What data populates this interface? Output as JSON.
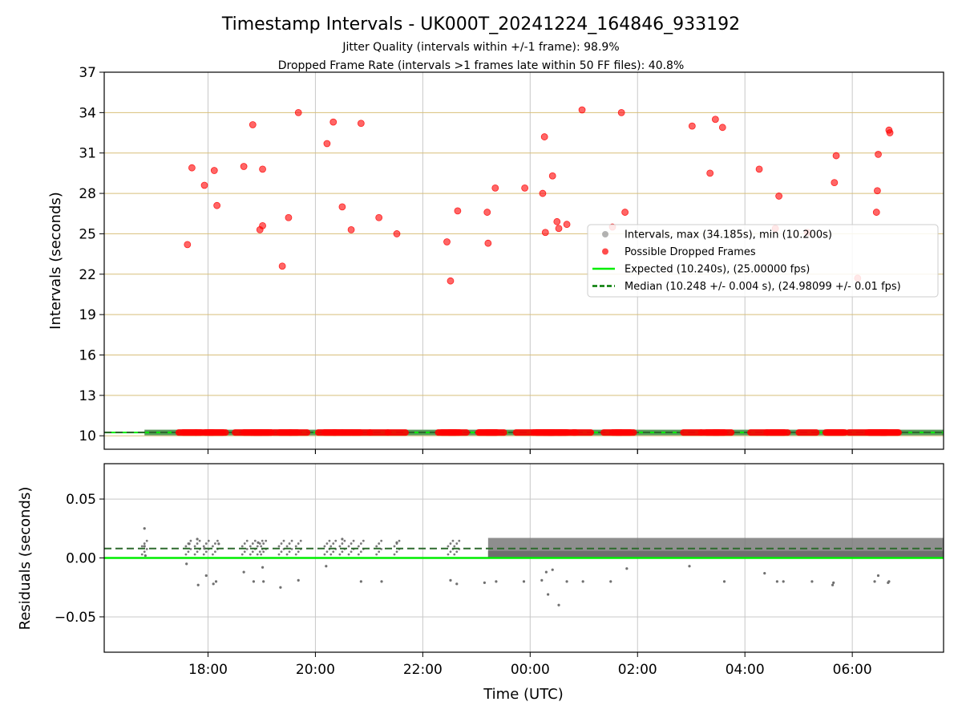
{
  "figure": {
    "title": "Timestamp Intervals - UK000T_20241224_164846_933192",
    "subtitle_1": "Jitter Quality (intervals within +/-1 frame): 98.9%",
    "subtitle_2": "Dropped Frame Rate (intervals >1 frames late within 50 FF files): 40.8%"
  },
  "chart_data": [
    {
      "type": "scatter",
      "panel": "top",
      "xlabel": "",
      "ylabel": "Intervals (seconds)",
      "xlim": [
        "16:04",
        "07:42"
      ],
      "ylim": [
        9,
        37
      ],
      "yticks": [
        10,
        13,
        16,
        19,
        22,
        25,
        28,
        31,
        34,
        37
      ],
      "xticks": [
        "18:00",
        "20:00",
        "22:00",
        "00:00",
        "02:00",
        "04:00",
        "06:00"
      ],
      "grid": "on (gray vertical, tan horizontal)",
      "legend_position": "center-right",
      "colors": {
        "interval": "#808080",
        "dropped": "#ff0000",
        "expected": "#00ee00",
        "median": "#007a00",
        "hgrid": "#d8bf7a",
        "vgrid": "#c8c8c8"
      },
      "expected_interval": 10.24,
      "median_interval": 10.248,
      "legend": [
        {
          "label": "Intervals, max (34.185s), min (10.200s)",
          "kind": "interval"
        },
        {
          "label": "Possible Dropped Frames",
          "kind": "dropped"
        },
        {
          "label": "Expected (10.240s), (25.00000 fps)",
          "kind": "expected"
        },
        {
          "label": "Median (10.248 +/- 0.004 s), (24.98099 +/- 0.01 fps)",
          "kind": "median"
        }
      ],
      "series": [
        {
          "name": "Possible Dropped Frames",
          "points": [
            [
              "17:37",
              24.2
            ],
            [
              "17:42",
              29.9
            ],
            [
              "17:56",
              28.6
            ],
            [
              "18:07",
              29.7
            ],
            [
              "18:10",
              27.1
            ],
            [
              "18:40",
              30.0
            ],
            [
              "18:50",
              33.1
            ],
            [
              "18:58",
              25.3
            ],
            [
              "19:01",
              25.6
            ],
            [
              "19:01",
              29.8
            ],
            [
              "19:23",
              22.6
            ],
            [
              "19:30",
              26.2
            ],
            [
              "19:41",
              34.0
            ],
            [
              "20:13",
              31.7
            ],
            [
              "20:20",
              33.3
            ],
            [
              "20:30",
              27.0
            ],
            [
              "20:40",
              25.3
            ],
            [
              "20:51",
              33.2
            ],
            [
              "21:11",
              26.2
            ],
            [
              "21:31",
              25.0
            ],
            [
              "22:27",
              24.4
            ],
            [
              "22:31",
              21.5
            ],
            [
              "22:39",
              26.7
            ],
            [
              "23:12",
              26.6
            ],
            [
              "23:13",
              24.3
            ],
            [
              "23:21",
              28.4
            ],
            [
              "23:54",
              28.4
            ],
            [
              "00:14",
              28.0
            ],
            [
              "00:16",
              32.2
            ],
            [
              "00:17",
              25.1
            ],
            [
              "00:25",
              29.3
            ],
            [
              "00:30",
              25.9
            ],
            [
              "00:32",
              25.4
            ],
            [
              "00:41",
              25.7
            ],
            [
              "00:58",
              34.2
            ],
            [
              "01:32",
              25.5
            ],
            [
              "01:42",
              34.0
            ],
            [
              "01:46",
              26.6
            ],
            [
              "03:01",
              33.0
            ],
            [
              "03:21",
              29.5
            ],
            [
              "03:27",
              33.5
            ],
            [
              "03:35",
              32.9
            ],
            [
              "04:16",
              29.8
            ],
            [
              "04:34",
              25.4
            ],
            [
              "04:38",
              27.8
            ],
            [
              "05:10",
              25.1
            ],
            [
              "05:40",
              28.8
            ],
            [
              "05:42",
              30.8
            ],
            [
              "06:06",
              21.7
            ],
            [
              "06:27",
              26.6
            ],
            [
              "06:28",
              28.2
            ],
            [
              "06:29",
              30.9
            ],
            [
              "06:41",
              32.7
            ],
            [
              "06:42",
              32.5
            ]
          ]
        }
      ]
    },
    {
      "type": "scatter",
      "panel": "bottom",
      "xlabel": "Time (UTC)",
      "ylabel": "Residuals (seconds)",
      "xlim": [
        "16:04",
        "07:42"
      ],
      "ylim": [
        -0.08,
        0.08
      ],
      "yticks": [
        0.05,
        0.0,
        -0.05
      ],
      "ytick_labels": [
        "0.05",
        "0.00",
        "−0.05"
      ],
      "xticks": [
        "18:00",
        "20:00",
        "22:00",
        "00:00",
        "02:00",
        "04:00",
        "06:00"
      ],
      "grid": "on",
      "expected_residual": 0.0,
      "median_residual": 0.008,
      "series": [
        {
          "name": "Residuals",
          "points": [
            [
              "16:49",
              0.025
            ],
            [
              "16:49",
              0.01
            ],
            [
              "16:50",
              0.002
            ],
            [
              "17:36",
              -0.005
            ],
            [
              "17:39",
              0.012
            ],
            [
              "17:48",
              0.016
            ],
            [
              "17:49",
              -0.023
            ],
            [
              "17:56",
              0.008
            ],
            [
              "17:58",
              -0.015
            ],
            [
              "18:06",
              -0.022
            ],
            [
              "18:09",
              -0.02
            ],
            [
              "18:12",
              0.012
            ],
            [
              "18:40",
              -0.012
            ],
            [
              "18:51",
              -0.02
            ],
            [
              "18:56",
              0.013
            ],
            [
              "19:01",
              -0.008
            ],
            [
              "19:02",
              -0.02
            ],
            [
              "19:21",
              -0.025
            ],
            [
              "19:41",
              -0.019
            ],
            [
              "20:12",
              -0.007
            ],
            [
              "20:30",
              0.016
            ],
            [
              "20:51",
              -0.02
            ],
            [
              "21:14",
              -0.02
            ],
            [
              "21:31",
              0.013
            ],
            [
              "22:31",
              -0.019
            ],
            [
              "22:38",
              -0.022
            ],
            [
              "23:09",
              -0.021
            ],
            [
              "23:22",
              -0.02
            ],
            [
              "23:53",
              -0.02
            ],
            [
              "00:13",
              -0.019
            ],
            [
              "00:18",
              -0.012
            ],
            [
              "00:20",
              -0.031
            ],
            [
              "00:25",
              -0.01
            ],
            [
              "00:32",
              -0.04
            ],
            [
              "00:41",
              -0.02
            ],
            [
              "00:59",
              -0.02
            ],
            [
              "01:30",
              -0.02
            ],
            [
              "01:48",
              -0.009
            ],
            [
              "02:58",
              -0.007
            ],
            [
              "03:37",
              -0.02
            ],
            [
              "04:22",
              -0.013
            ],
            [
              "04:36",
              -0.02
            ],
            [
              "04:43",
              -0.02
            ],
            [
              "05:15",
              -0.02
            ],
            [
              "05:38",
              -0.023
            ],
            [
              "05:39",
              -0.021
            ],
            [
              "06:25",
              -0.02
            ],
            [
              "06:29",
              -0.015
            ],
            [
              "06:40",
              -0.021
            ],
            [
              "06:41",
              -0.02
            ]
          ]
        }
      ]
    }
  ]
}
